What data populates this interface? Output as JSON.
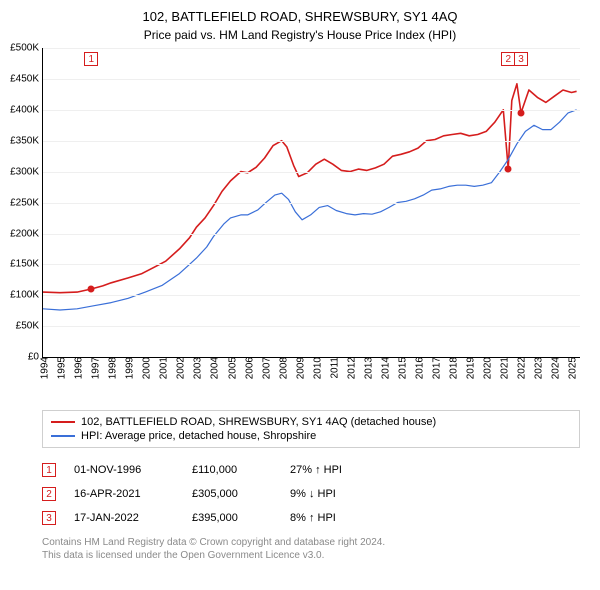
{
  "title": "102, BATTLEFIELD ROAD, SHREWSBURY, SY1 4AQ",
  "subtitle": "Price paid vs. HM Land Registry's House Price Index (HPI)",
  "chart": {
    "type": "line",
    "background_color": "#ffffff",
    "grid_color": "#efefef",
    "axis_color": "#000000",
    "label_fontsize": 10,
    "x_min": 1994,
    "x_max": 2025.5,
    "x_ticks": [
      1994,
      1995,
      1996,
      1997,
      1998,
      1999,
      2000,
      2001,
      2002,
      2003,
      2004,
      2005,
      2006,
      2007,
      2008,
      2009,
      2010,
      2011,
      2012,
      2013,
      2014,
      2015,
      2016,
      2017,
      2018,
      2019,
      2020,
      2021,
      2022,
      2023,
      2024,
      2025
    ],
    "y_min": 0,
    "y_max": 500000,
    "y_tick_step": 50000,
    "y_tick_prefix": "£",
    "y_tick_suffix": "K",
    "y_tick_labels": [
      "£0",
      "£50K",
      "£100K",
      "£150K",
      "£200K",
      "£250K",
      "£300K",
      "£350K",
      "£400K",
      "£450K",
      "£500K"
    ],
    "series": [
      {
        "name": "property",
        "label": "102, BATTLEFIELD ROAD, SHREWSBURY, SY1 4AQ (detached house)",
        "color": "#d51d1d",
        "width": 1.6,
        "points": [
          [
            1994.0,
            105000
          ],
          [
            1995.0,
            104000
          ],
          [
            1996.0,
            105000
          ],
          [
            1996.83,
            110000
          ],
          [
            1997.5,
            115000
          ],
          [
            1998.0,
            120000
          ],
          [
            1999.0,
            128000
          ],
          [
            1999.8,
            135000
          ],
          [
            2000.5,
            145000
          ],
          [
            2001.2,
            155000
          ],
          [
            2002.0,
            175000
          ],
          [
            2002.6,
            193000
          ],
          [
            2003.0,
            210000
          ],
          [
            2003.5,
            225000
          ],
          [
            2004.0,
            245000
          ],
          [
            2004.5,
            268000
          ],
          [
            2005.0,
            285000
          ],
          [
            2005.6,
            300000
          ],
          [
            2006.0,
            298000
          ],
          [
            2006.5,
            307000
          ],
          [
            2007.0,
            322000
          ],
          [
            2007.5,
            342000
          ],
          [
            2008.0,
            350000
          ],
          [
            2008.3,
            340000
          ],
          [
            2008.7,
            310000
          ],
          [
            2009.0,
            292000
          ],
          [
            2009.5,
            298000
          ],
          [
            2010.0,
            312000
          ],
          [
            2010.5,
            320000
          ],
          [
            2011.0,
            312000
          ],
          [
            2011.5,
            302000
          ],
          [
            2012.0,
            300000
          ],
          [
            2012.5,
            304000
          ],
          [
            2013.0,
            302000
          ],
          [
            2013.5,
            306000
          ],
          [
            2014.0,
            312000
          ],
          [
            2014.5,
            325000
          ],
          [
            2015.0,
            328000
          ],
          [
            2015.5,
            332000
          ],
          [
            2016.0,
            338000
          ],
          [
            2016.5,
            350000
          ],
          [
            2017.0,
            352000
          ],
          [
            2017.5,
            358000
          ],
          [
            2018.0,
            360000
          ],
          [
            2018.5,
            362000
          ],
          [
            2019.0,
            358000
          ],
          [
            2019.5,
            360000
          ],
          [
            2020.0,
            365000
          ],
          [
            2020.5,
            380000
          ],
          [
            2021.0,
            400000
          ],
          [
            2021.29,
            305000
          ],
          [
            2021.5,
            415000
          ],
          [
            2021.8,
            442000
          ],
          [
            2022.04,
            395000
          ],
          [
            2022.5,
            432000
          ],
          [
            2023.0,
            420000
          ],
          [
            2023.5,
            412000
          ],
          [
            2024.0,
            422000
          ],
          [
            2024.5,
            432000
          ],
          [
            2025.0,
            428000
          ],
          [
            2025.3,
            430000
          ]
        ]
      },
      {
        "name": "hpi",
        "label": "HPI: Average price, detached house, Shropshire",
        "color": "#3a6fd8",
        "width": 1.2,
        "points": [
          [
            1994.0,
            78000
          ],
          [
            1995.0,
            76000
          ],
          [
            1996.0,
            78000
          ],
          [
            1997.0,
            83000
          ],
          [
            1998.0,
            88000
          ],
          [
            1999.0,
            95000
          ],
          [
            2000.0,
            105000
          ],
          [
            2001.0,
            116000
          ],
          [
            2002.0,
            135000
          ],
          [
            2002.6,
            150000
          ],
          [
            2003.0,
            160000
          ],
          [
            2003.6,
            178000
          ],
          [
            2004.0,
            195000
          ],
          [
            2004.6,
            215000
          ],
          [
            2005.0,
            225000
          ],
          [
            2005.6,
            230000
          ],
          [
            2006.0,
            230000
          ],
          [
            2006.6,
            238000
          ],
          [
            2007.0,
            248000
          ],
          [
            2007.6,
            262000
          ],
          [
            2008.0,
            265000
          ],
          [
            2008.4,
            255000
          ],
          [
            2008.8,
            235000
          ],
          [
            2009.2,
            222000
          ],
          [
            2009.7,
            230000
          ],
          [
            2010.2,
            242000
          ],
          [
            2010.7,
            245000
          ],
          [
            2011.2,
            237000
          ],
          [
            2011.8,
            232000
          ],
          [
            2012.3,
            230000
          ],
          [
            2012.8,
            232000
          ],
          [
            2013.3,
            231000
          ],
          [
            2013.8,
            235000
          ],
          [
            2014.3,
            242000
          ],
          [
            2014.8,
            250000
          ],
          [
            2015.3,
            252000
          ],
          [
            2015.8,
            256000
          ],
          [
            2016.3,
            262000
          ],
          [
            2016.8,
            270000
          ],
          [
            2017.3,
            272000
          ],
          [
            2017.8,
            276000
          ],
          [
            2018.3,
            278000
          ],
          [
            2018.8,
            278000
          ],
          [
            2019.3,
            276000
          ],
          [
            2019.8,
            278000
          ],
          [
            2020.3,
            282000
          ],
          [
            2020.8,
            300000
          ],
          [
            2021.3,
            320000
          ],
          [
            2021.8,
            345000
          ],
          [
            2022.3,
            365000
          ],
          [
            2022.8,
            375000
          ],
          [
            2023.3,
            368000
          ],
          [
            2023.8,
            368000
          ],
          [
            2024.3,
            380000
          ],
          [
            2024.8,
            395000
          ],
          [
            2025.3,
            400000
          ]
        ]
      }
    ],
    "sale_points": [
      {
        "x": 1996.83,
        "y": 110000,
        "color": "#d51d1d"
      },
      {
        "x": 2021.29,
        "y": 305000,
        "color": "#d51d1d"
      },
      {
        "x": 2022.04,
        "y": 395000,
        "color": "#d51d1d"
      }
    ],
    "markers": [
      {
        "n": "1",
        "x": 1996.83,
        "color": "#d51d1d"
      },
      {
        "n": "2",
        "x": 2021.29,
        "color": "#d51d1d"
      },
      {
        "n": "3",
        "x": 2022.04,
        "color": "#d51d1d"
      }
    ]
  },
  "legend": {
    "border_color": "#cfcfcf",
    "fontsize": 11,
    "items": [
      {
        "color": "#d51d1d",
        "label_path": "chart.series.0.label"
      },
      {
        "color": "#3a6fd8",
        "label_path": "chart.series.1.label"
      }
    ]
  },
  "events": [
    {
      "n": "1",
      "date": "01-NOV-1996",
      "price": "£110,000",
      "diff": "27% ↑ HPI",
      "color": "#d51d1d"
    },
    {
      "n": "2",
      "date": "16-APR-2021",
      "price": "£305,000",
      "diff": "9% ↓ HPI",
      "color": "#d51d1d"
    },
    {
      "n": "3",
      "date": "17-JAN-2022",
      "price": "£395,000",
      "diff": "8% ↑ HPI",
      "color": "#d51d1d"
    }
  ],
  "footer": {
    "line1": "Contains HM Land Registry data © Crown copyright and database right 2024.",
    "line2": "This data is licensed under the Open Government Licence v3.0.",
    "color": "#8a8a8a"
  }
}
